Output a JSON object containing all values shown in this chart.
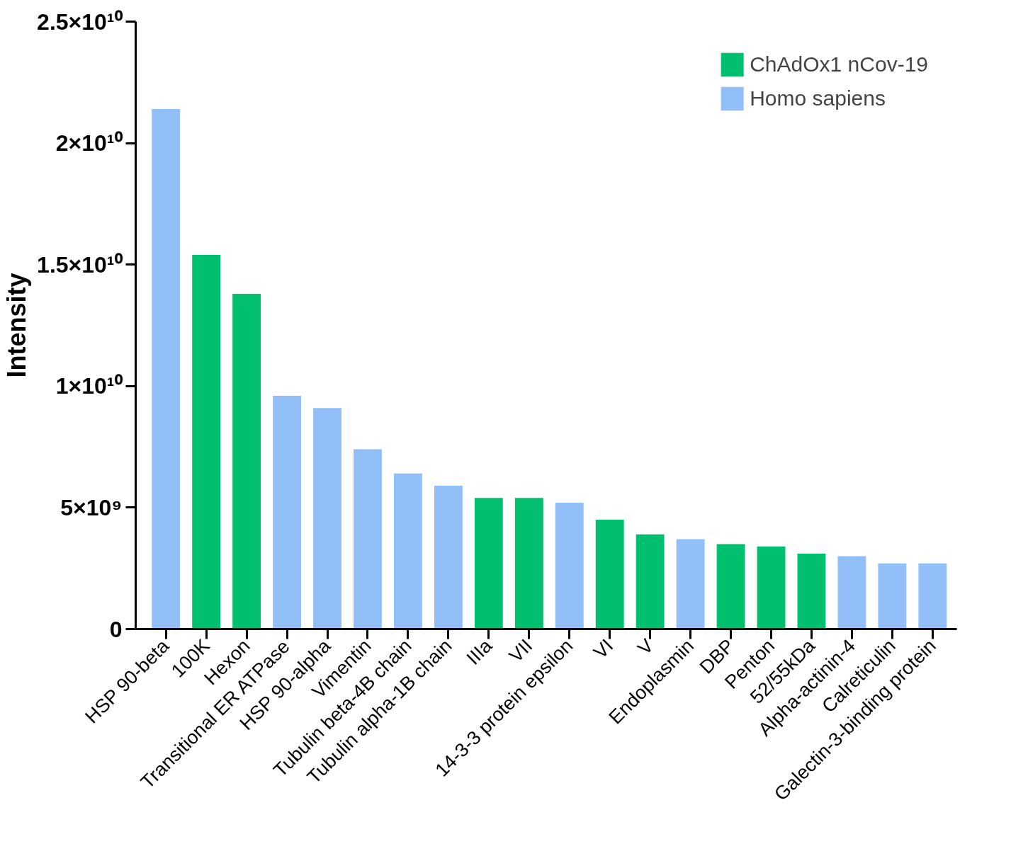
{
  "chart_data": {
    "type": "bar",
    "ylabel": "Intensity",
    "legend": "top right",
    "grid": false,
    "categories": [
      "HSP 90-beta",
      "100K",
      "Hexon",
      "Transitional ER ATPase",
      "HSP 90-alpha",
      "Vimentin",
      "Tubulin beta-4B chain",
      "Tubulin alpha-1B chain",
      "IIIa",
      "VII",
      "14-3-3 protein epsilon",
      "VI",
      "V",
      "Endoplasmin",
      "DBP",
      "Penton",
      "52/55kDa",
      "Alpha-actinin-4",
      "Calreticulin",
      "Galectin-3-binding protein"
    ],
    "series": [
      {
        "name": "ChAdOx1 nCov-19",
        "color": "#00bf6f",
        "values": [
          null,
          15400000000.0,
          13800000000.0,
          null,
          null,
          null,
          null,
          null,
          5400000000.0,
          5400000000.0,
          null,
          4500000000.0,
          3900000000.0,
          null,
          3500000000.0,
          3400000000.0,
          3100000000.0,
          null,
          null,
          null
        ]
      },
      {
        "name": "Homo sapiens",
        "color": "#93bff8",
        "values": [
          21400000000.0,
          null,
          null,
          9600000000.0,
          9100000000.0,
          7400000000.0,
          6400000000.0,
          5900000000.0,
          null,
          null,
          5200000000.0,
          null,
          null,
          3700000000.0,
          null,
          null,
          null,
          3000000000.0,
          2700000000.0,
          2700000000.0
        ]
      }
    ],
    "ylim": [
      0,
      25000000000.0
    ],
    "yticks": [
      0,
      {
        "value": 5000000000.0,
        "label": "5×10⁹"
      },
      {
        "value": 10000000000.0,
        "label": "1×10¹⁰"
      },
      {
        "value": 15000000000.0,
        "label": "1.5×10¹⁰"
      },
      {
        "value": 20000000000.0,
        "label": "2×10¹⁰"
      },
      {
        "value": 25000000000.0,
        "label": "2.5×10¹⁰"
      }
    ]
  }
}
